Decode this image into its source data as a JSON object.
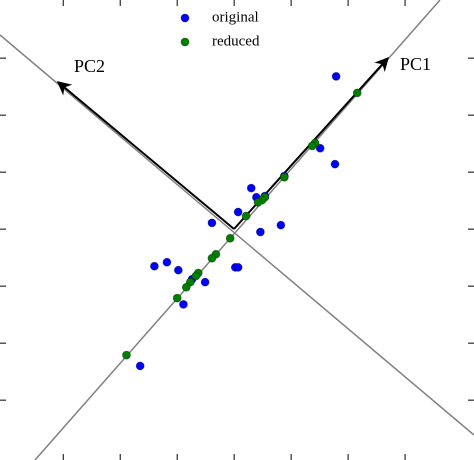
{
  "chart_data": {
    "type": "scatter",
    "series": [
      {
        "name": "original",
        "color": "#0000ff",
        "x": [
          1.79,
          1.51,
          1.77,
          0.88,
          0.3,
          0.39,
          0.54,
          0.07,
          -0.39,
          0.82,
          0.46,
          -1.4,
          -1.18,
          -0.98,
          0.02,
          0.07,
          -0.51,
          -0.74,
          -0.89,
          -1.65
        ],
        "values": [
          2.68,
          1.42,
          1.14,
          0.93,
          0.72,
          0.56,
          0.58,
          0.3,
          0.11,
          0.07,
          -0.05,
          -0.65,
          -0.58,
          -0.72,
          -0.67,
          -0.67,
          -0.93,
          -0.88,
          -1.32,
          -2.4
        ]
      },
      {
        "name": "reduced",
        "color": "#008000",
        "x": [
          2.16,
          1.42,
          1.37,
          0.88,
          0.54,
          0.49,
          0.42,
          0.21,
          -0.07,
          -0.32,
          -0.39,
          -0.63,
          -0.67,
          -0.77,
          -0.84,
          -1.0,
          -1.89
        ],
        "values": [
          2.39,
          1.51,
          1.46,
          0.91,
          0.56,
          0.51,
          0.47,
          0.23,
          -0.16,
          -0.44,
          -0.51,
          -0.77,
          -0.82,
          -0.93,
          -1.02,
          -1.21,
          -2.21
        ]
      }
    ],
    "annotations": [
      "PC1",
      "PC2"
    ],
    "xlim": [
      -4.11,
      4.21
    ],
    "ylim": [
      -4.05,
      4.02
    ],
    "xticks": [
      -3,
      -2,
      -1,
      0,
      1,
      2,
      3
    ],
    "yticks": [
      -3,
      -2,
      -1,
      0,
      1,
      2,
      3
    ],
    "legend": "upper center"
  }
}
